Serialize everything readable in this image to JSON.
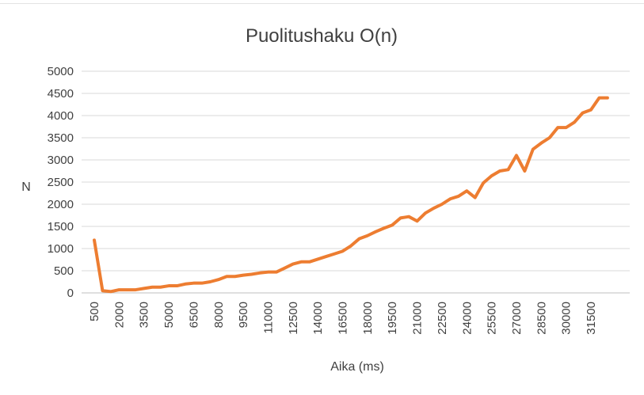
{
  "chart_data": {
    "type": "line",
    "title": "Puolitushaku O(n)",
    "xlabel": "Aika (ms)",
    "ylabel": "N",
    "ylim": [
      0,
      5000
    ],
    "yticks": [
      "0",
      "500",
      "1000",
      "1500",
      "2000",
      "2500",
      "3000",
      "3500",
      "4000",
      "4500",
      "5000"
    ],
    "x_tick_labels": [
      "500",
      "2000",
      "3500",
      "5000",
      "6500",
      "8000",
      "9500",
      "11000",
      "12500",
      "14000",
      "16500",
      "18000",
      "19500",
      "21000",
      "22500",
      "24000",
      "25500",
      "27000",
      "28500",
      "30000",
      "31500"
    ],
    "grid": true,
    "legend": "none",
    "line_color": "#ED7D31",
    "series": [
      {
        "values": [
          1190,
          50,
          30,
          70,
          70,
          70,
          100,
          130,
          130,
          160,
          160,
          200,
          220,
          220,
          250,
          300,
          370,
          370,
          400,
          420,
          450,
          470,
          470,
          560,
          650,
          700,
          700,
          760,
          820,
          880,
          940,
          1060,
          1220,
          1290,
          1380,
          1460,
          1530,
          1690,
          1720,
          1620,
          1800,
          1910,
          2000,
          2120,
          2180,
          2300,
          2150,
          2480,
          2640,
          2750,
          2780,
          3100,
          2750,
          3240,
          3380,
          3500,
          3730,
          3730,
          3850,
          4060,
          4130,
          4400,
          4400
        ]
      }
    ]
  }
}
